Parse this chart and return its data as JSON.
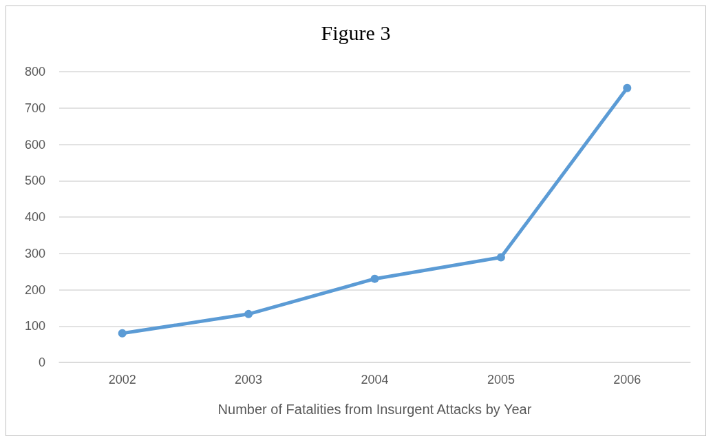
{
  "chart_data": {
    "type": "line",
    "title": "Figure 3",
    "xlabel": "Number of Fatalities from Insurgent Attacks by Year",
    "categories": [
      "2002",
      "2003",
      "2004",
      "2005",
      "2006"
    ],
    "series": [
      {
        "color": "#5b9bd5",
        "values": [
          80,
          133,
          230,
          289,
          755
        ]
      }
    ],
    "ylim": [
      0,
      800
    ],
    "yticks": [
      0,
      100,
      200,
      300,
      400,
      500,
      600,
      700,
      800
    ],
    "grid": "y",
    "marker": "circle",
    "line_style": "solid"
  }
}
